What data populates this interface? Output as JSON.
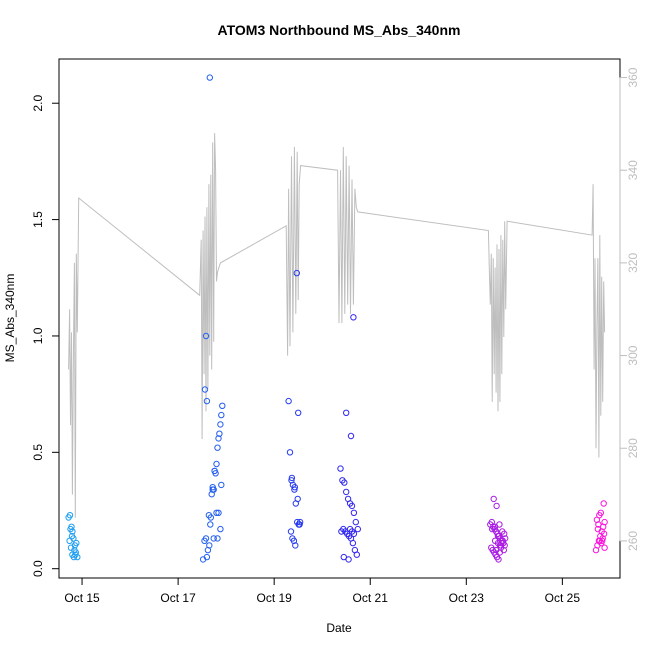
{
  "chart_data": {
    "type": "scatter",
    "title": "ATOM3 Northbound MS_Abs_340nm",
    "xlabel": "Date",
    "ylabel": "MS_Abs_340nm",
    "x_ticks": [
      "Oct 15",
      "Oct 17",
      "Oct 19",
      "Oct 21",
      "Oct 23",
      "Oct 25"
    ],
    "y_ticks": [
      "0.0",
      "0.5",
      "1.0",
      "1.5",
      "2.0"
    ],
    "y2_ticks": [
      "260",
      "280",
      "300",
      "320",
      "340",
      "360"
    ],
    "xlim_days": [
      14.52,
      26.2
    ],
    "ylim": [
      -0.04,
      2.19
    ],
    "y2lim": [
      252,
      364
    ],
    "grid": false,
    "colors": {
      "line": "#bebebe",
      "right_axis": "#bebebe",
      "axis": "#000000",
      "start_point": "#1ea0f0",
      "end_point": "#ff14dc"
    },
    "series": [
      {
        "kind": "points",
        "x_days": [
          14.72,
          14.75,
          14.78,
          14.8,
          14.82,
          14.85,
          14.87,
          14.9,
          14.74,
          14.77,
          14.8,
          14.84,
          14.88,
          14.76,
          14.79,
          14.83,
          14.86,
          17.52,
          17.55,
          17.58,
          17.6,
          17.62,
          17.65,
          17.67,
          17.7,
          17.72,
          17.74,
          17.76,
          17.78,
          17.8,
          17.82,
          17.84,
          17.86,
          17.88,
          17.9,
          17.92,
          17.56,
          17.6,
          17.64,
          17.68,
          17.72,
          17.76,
          17.8,
          17.84,
          17.88,
          17.58,
          17.66,
          17.74,
          17.82,
          17.9,
          19.3,
          19.33,
          19.36,
          19.39,
          19.42,
          19.45,
          19.48,
          19.51,
          19.54,
          19.35,
          19.38,
          19.41,
          19.44,
          19.47,
          19.5,
          19.37,
          19.43,
          19.49,
          19.53,
          20.38,
          20.42,
          20.46,
          20.5,
          20.54,
          20.58,
          20.62,
          20.66,
          20.7,
          20.74,
          20.4,
          20.44,
          20.48,
          20.52,
          20.56,
          20.6,
          20.64,
          20.68,
          20.72,
          20.45,
          20.55,
          20.65,
          20.5,
          20.6,
          20.58,
          20.62,
          20.66,
          23.5,
          23.53,
          23.56,
          23.59,
          23.62,
          23.65,
          23.68,
          23.71,
          23.74,
          23.77,
          23.8,
          23.52,
          23.55,
          23.58,
          23.61,
          23.64,
          23.67,
          23.7,
          23.73,
          23.76,
          23.79,
          23.54,
          23.6,
          23.66,
          23.72,
          23.78,
          23.57,
          23.63,
          23.69,
          23.75,
          23.81,
          23.6,
          23.66,
          23.72,
          23.62,
          23.7,
          25.7,
          25.73,
          25.76,
          25.79,
          25.82,
          25.85,
          25.88,
          25.72,
          25.75,
          25.78,
          25.81,
          25.84,
          25.87,
          25.74,
          25.8,
          25.86,
          25.77,
          25.83,
          25.88
        ],
        "y": [
          0.22,
          0.23,
          0.18,
          0.16,
          0.13,
          0.1,
          0.07,
          0.05,
          0.12,
          0.09,
          0.06,
          0.08,
          0.11,
          0.17,
          0.14,
          0.05,
          0.06,
          0.04,
          0.12,
          0.13,
          0.05,
          0.08,
          0.1,
          0.19,
          0.32,
          0.35,
          0.34,
          0.42,
          0.41,
          0.45,
          0.52,
          0.56,
          0.58,
          0.62,
          0.66,
          0.7,
          0.77,
          0.72,
          0.23,
          0.22,
          0.34,
          0.42,
          0.24,
          0.24,
          0.17,
          1.0,
          2.11,
          0.13,
          0.13,
          0.36,
          0.72,
          0.5,
          0.38,
          0.36,
          0.34,
          0.28,
          0.2,
          0.19,
          0.2,
          0.16,
          0.13,
          0.12,
          0.1,
          1.27,
          0.67,
          0.39,
          0.35,
          0.3,
          0.19,
          0.43,
          0.38,
          0.37,
          0.33,
          0.3,
          0.28,
          0.27,
          0.24,
          0.2,
          0.17,
          0.16,
          0.17,
          0.16,
          0.15,
          0.14,
          0.13,
          0.11,
          0.08,
          0.06,
          0.05,
          0.04,
          1.08,
          0.67,
          0.57,
          0.17,
          0.16,
          0.15,
          0.19,
          0.2,
          0.18,
          0.17,
          0.16,
          0.15,
          0.14,
          0.13,
          0.12,
          0.11,
          0.1,
          0.09,
          0.08,
          0.07,
          0.06,
          0.05,
          0.04,
          0.1,
          0.11,
          0.12,
          0.15,
          0.17,
          0.18,
          0.14,
          0.1,
          0.08,
          0.3,
          0.27,
          0.19,
          0.16,
          0.13,
          0.12,
          0.11,
          0.09,
          0.08,
          0.07,
          0.08,
          0.1,
          0.12,
          0.14,
          0.16,
          0.18,
          0.2,
          0.21,
          0.19,
          0.12,
          0.11,
          0.13,
          0.15,
          0.17,
          0.24,
          0.28,
          0.23,
          0.12,
          0.09
        ]
      },
      {
        "kind": "line",
        "axis": "right",
        "x_days": [
          14.72,
          14.74,
          14.76,
          14.78,
          14.8,
          14.82,
          14.84,
          14.86,
          14.88,
          14.9,
          14.93,
          17.45,
          17.48,
          17.5,
          17.52,
          17.54,
          17.56,
          17.58,
          17.6,
          17.62,
          17.64,
          17.66,
          17.68,
          17.7,
          17.72,
          17.74,
          17.76,
          17.78,
          17.8,
          17.82,
          17.85,
          17.88,
          19.25,
          19.28,
          19.3,
          19.33,
          19.36,
          19.39,
          19.42,
          19.45,
          19.48,
          19.5,
          19.52,
          19.55,
          20.32,
          20.35,
          20.38,
          20.41,
          20.44,
          20.47,
          20.5,
          20.53,
          20.56,
          20.59,
          20.62,
          20.65,
          20.68,
          20.71,
          20.74,
          23.46,
          23.48,
          23.5,
          23.52,
          23.54,
          23.56,
          23.58,
          23.6,
          23.62,
          23.64,
          23.66,
          23.68,
          23.7,
          23.72,
          23.74,
          23.76,
          23.78,
          23.8,
          23.82,
          23.85,
          25.62,
          25.64,
          25.66,
          25.68,
          25.7,
          25.72,
          25.74,
          25.76,
          25.78,
          25.8,
          25.82,
          25.84,
          25.86,
          25.88
        ],
        "y": [
          297,
          310,
          285,
          305,
          270,
          300,
          320,
          265,
          322,
          305,
          334,
          313,
          325,
          282,
          327,
          296,
          330,
          288,
          332,
          293,
          337,
          300,
          339,
          297,
          346,
          303,
          348,
          340,
          316,
          318,
          319,
          320,
          328,
          300,
          336,
          302,
          343,
          305,
          345,
          309,
          344,
          312,
          337,
          341,
          340,
          307,
          340,
          307,
          345,
          309,
          343,
          311,
          341,
          309,
          338,
          311,
          336,
          332,
          331,
          327,
          318,
          311,
          322,
          290,
          321,
          296,
          319,
          292,
          324,
          288,
          323,
          290,
          326,
          296,
          325,
          304,
          329,
          310,
          329,
          326,
          337,
          297,
          321,
          280,
          306,
          321,
          278,
          326,
          287,
          317,
          290,
          316,
          305
        ]
      }
    ]
  }
}
